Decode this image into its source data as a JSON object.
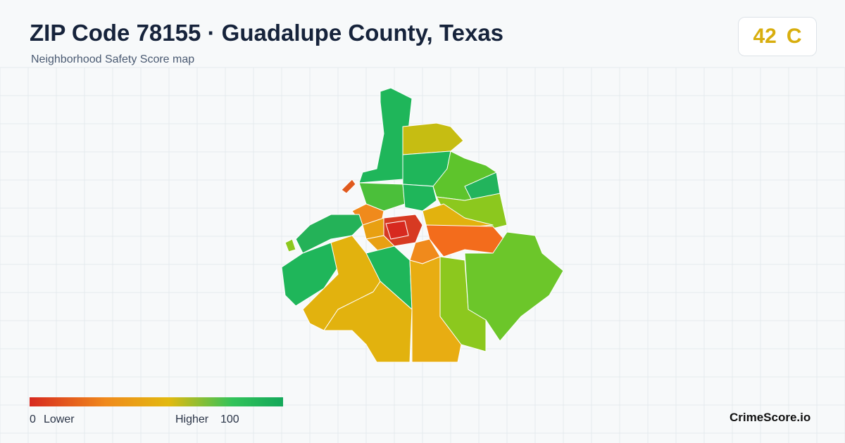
{
  "header": {
    "title": "ZIP Code 78155 · Guadalupe County, Texas",
    "subtitle": "Neighborhood Safety Score map"
  },
  "score": {
    "value": 42,
    "grade": "C"
  },
  "legend": {
    "min": 0,
    "min_label": "Lower",
    "max_label": "Higher",
    "max": 100
  },
  "brand": "CrimeScore.io"
}
